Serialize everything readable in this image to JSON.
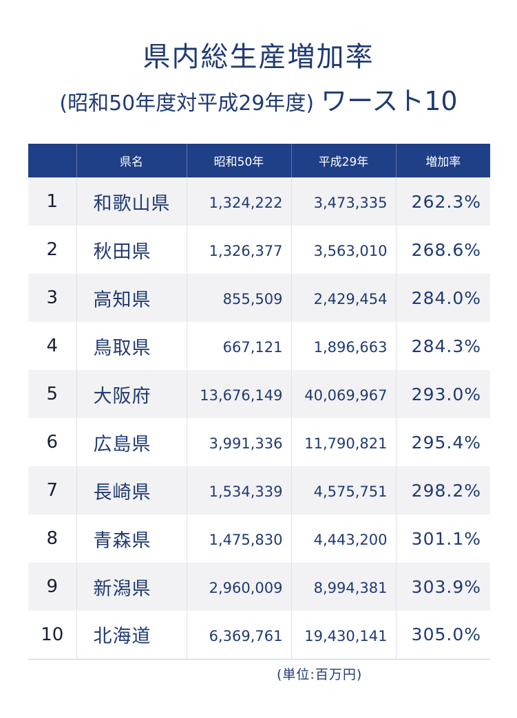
{
  "title": {
    "line1": "県内総生産増加率",
    "line2_sub": "(昭和50年度対平成29年度)",
    "line2_main": "ワースト10"
  },
  "table": {
    "headers": {
      "rank": "",
      "name": "県名",
      "showa50": "昭和50年",
      "heisei29": "平成29年",
      "rate": "増加率"
    },
    "rows": [
      {
        "rank": "1",
        "name": "和歌山県",
        "showa50": "1,324,222",
        "heisei29": "3,473,335",
        "rate": "262.3%"
      },
      {
        "rank": "2",
        "name": "秋田県",
        "showa50": "1,326,377",
        "heisei29": "3,563,010",
        "rate": "268.6%"
      },
      {
        "rank": "3",
        "name": "高知県",
        "showa50": "855,509",
        "heisei29": "2,429,454",
        "rate": "284.0%"
      },
      {
        "rank": "4",
        "name": "鳥取県",
        "showa50": "667,121",
        "heisei29": "1,896,663",
        "rate": "284.3%"
      },
      {
        "rank": "5",
        "name": "大阪府",
        "showa50": "13,676,149",
        "heisei29": "40,069,967",
        "rate": "293.0%"
      },
      {
        "rank": "6",
        "name": "広島県",
        "showa50": "3,991,336",
        "heisei29": "11,790,821",
        "rate": "295.4%"
      },
      {
        "rank": "7",
        "name": "長崎県",
        "showa50": "1,534,339",
        "heisei29": "4,575,751",
        "rate": "298.2%"
      },
      {
        "rank": "8",
        "name": "青森県",
        "showa50": "1,475,830",
        "heisei29": "4,443,200",
        "rate": "301.1%"
      },
      {
        "rank": "9",
        "name": "新潟県",
        "showa50": "2,960,009",
        "heisei29": "8,994,381",
        "rate": "303.9%"
      },
      {
        "rank": "10",
        "name": "北海道",
        "showa50": "6,369,761",
        "heisei29": "19,430,141",
        "rate": "305.0%"
      }
    ]
  },
  "unit_note": "(単位:百万円)"
}
